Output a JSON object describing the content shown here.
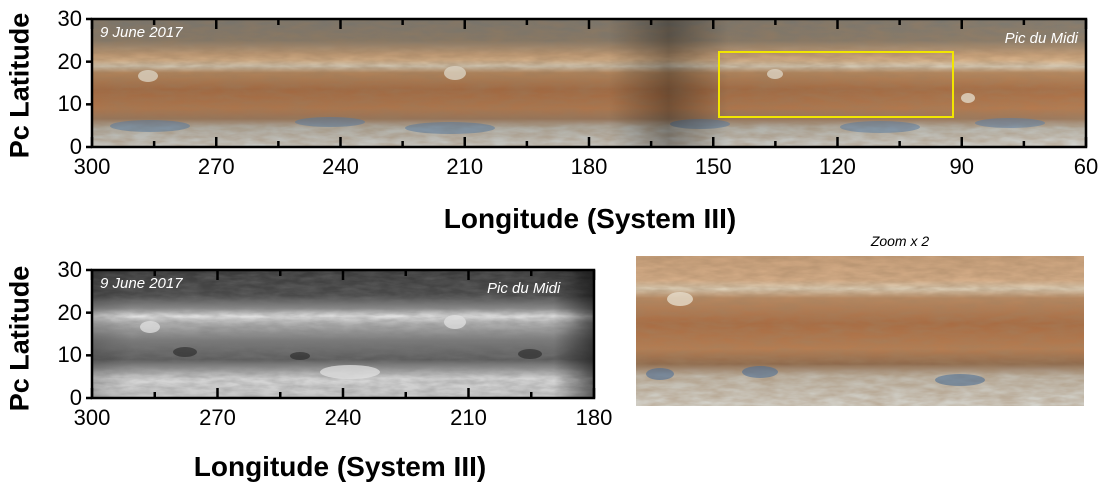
{
  "top_panel": {
    "date": "9 June 2017",
    "observatory": "Pic du Midi",
    "ylabel": "Pc Latitude",
    "xlabel": "Longitude (System III)",
    "xticks": [
      "300",
      "270",
      "240",
      "210",
      "180",
      "150",
      "120",
      "90",
      "60"
    ],
    "yticks": [
      "30",
      "20",
      "10",
      "0"
    ],
    "image_kind": "color"
  },
  "bottom_panel": {
    "date": "9 June 2017",
    "observatory": "Pic du Midi",
    "ylabel": "Pc Latitude",
    "xlabel": "Longitude (System III)",
    "xticks": [
      "300",
      "270",
      "240",
      "210",
      "180"
    ],
    "yticks": [
      "30",
      "20",
      "10",
      "0"
    ],
    "image_kind": "grayscale"
  },
  "zoom_panel": {
    "label": "Zoom x 2"
  },
  "colors": {
    "highlight_box": "#f2e600"
  }
}
